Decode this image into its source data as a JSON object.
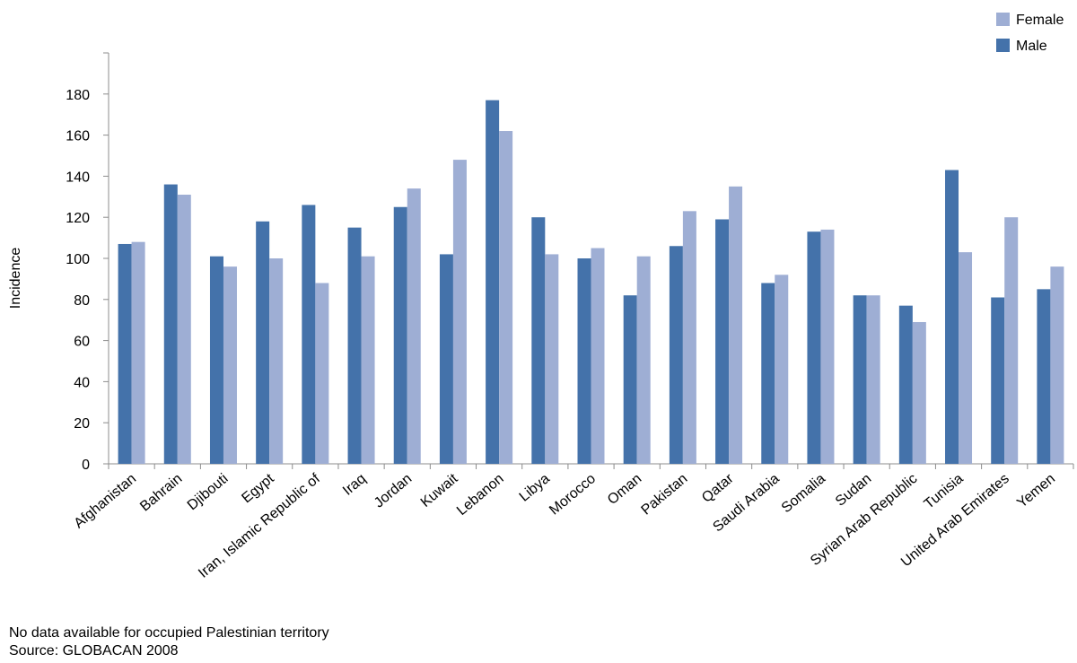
{
  "chart_data": {
    "type": "bar",
    "title": "",
    "xlabel": "",
    "ylabel": "Incidence",
    "ylim": [
      0,
      200
    ],
    "yticks": [
      0,
      20,
      40,
      60,
      80,
      100,
      120,
      140,
      160,
      180
    ],
    "grid": false,
    "legend_position": "top-right",
    "categories": [
      "Afghanistan",
      "Bahrain",
      "Djibouti",
      "Egypt",
      "Iran, Islamic Republic of",
      "Iraq",
      "Jordan",
      "Kuwait",
      "Lebanon",
      "Libya",
      "Morocco",
      "Oman",
      "Pakistan",
      "Qatar",
      "Saudi Arabia",
      "Somalia",
      "Sudan",
      "Syrian Arab Republic",
      "Tunisia",
      "United Arab Emirates",
      "Yemen"
    ],
    "series": [
      {
        "name": "Male",
        "color": "#4472aa",
        "values": [
          107,
          136,
          101,
          118,
          126,
          115,
          125,
          102,
          177,
          120,
          100,
          82,
          106,
          119,
          88,
          113,
          82,
          77,
          143,
          81,
          85
        ]
      },
      {
        "name": "Female",
        "color": "#9eaed4",
        "values": [
          108,
          131,
          96,
          100,
          88,
          101,
          134,
          148,
          162,
          102,
          105,
          101,
          123,
          135,
          92,
          114,
          82,
          69,
          103,
          120,
          96
        ]
      }
    ],
    "legend_order": [
      "Female",
      "Male"
    ]
  },
  "footnotes": {
    "note": "No data available for occupied Palestinian territory",
    "source": "Source: GLOBACAN 2008"
  }
}
